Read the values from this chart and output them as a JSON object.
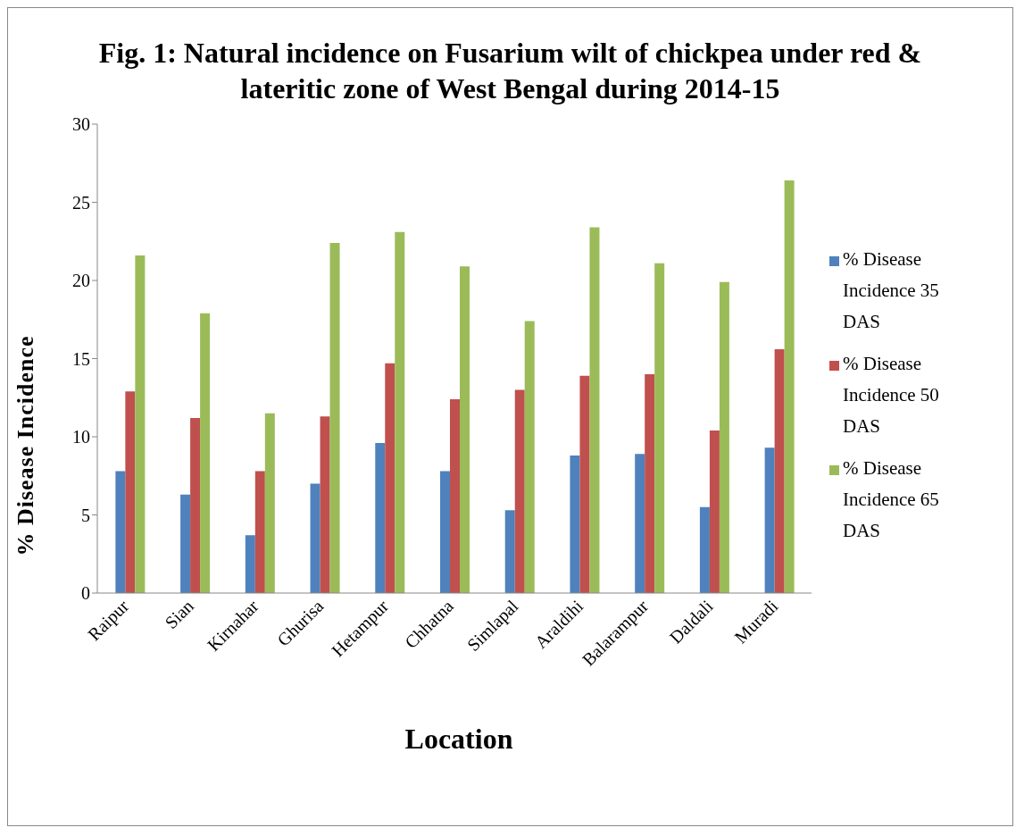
{
  "chart_data": {
    "type": "bar",
    "title": "Fig. 1: Natural incidence on Fusarium wilt of chickpea under red & lateritic zone of West Bengal during 2014-15",
    "xlabel": "Location",
    "ylabel": "% Disease Incidence",
    "categories": [
      "Raipur",
      "Sian",
      "Kirnahar",
      "Ghurisa",
      "Hetampur",
      "Chhatna",
      "Simlapal",
      "Araldihi",
      "Balarampur",
      "Daldali",
      "Muradi"
    ],
    "series": [
      {
        "name": "% Disease Incidence 35 DAS",
        "color": "#4f81bd",
        "values": [
          7.8,
          6.3,
          3.7,
          7.0,
          9.6,
          7.8,
          5.3,
          8.8,
          8.9,
          5.5,
          9.3
        ]
      },
      {
        "name": "% Disease Incidence 50 DAS",
        "color": "#c0504d",
        "values": [
          12.9,
          11.2,
          7.8,
          11.3,
          14.7,
          12.4,
          13.0,
          13.9,
          14.0,
          10.4,
          15.6
        ]
      },
      {
        "name": "% Disease Incidence 65 DAS",
        "color": "#9bbb59",
        "values": [
          21.6,
          17.9,
          11.5,
          22.4,
          23.1,
          20.9,
          17.4,
          23.4,
          21.1,
          19.9,
          26.4
        ]
      }
    ],
    "ylim": [
      0,
      30
    ],
    "yticks": [
      0,
      5,
      10,
      15,
      20,
      25,
      30
    ],
    "grid": false,
    "legend": "right"
  }
}
